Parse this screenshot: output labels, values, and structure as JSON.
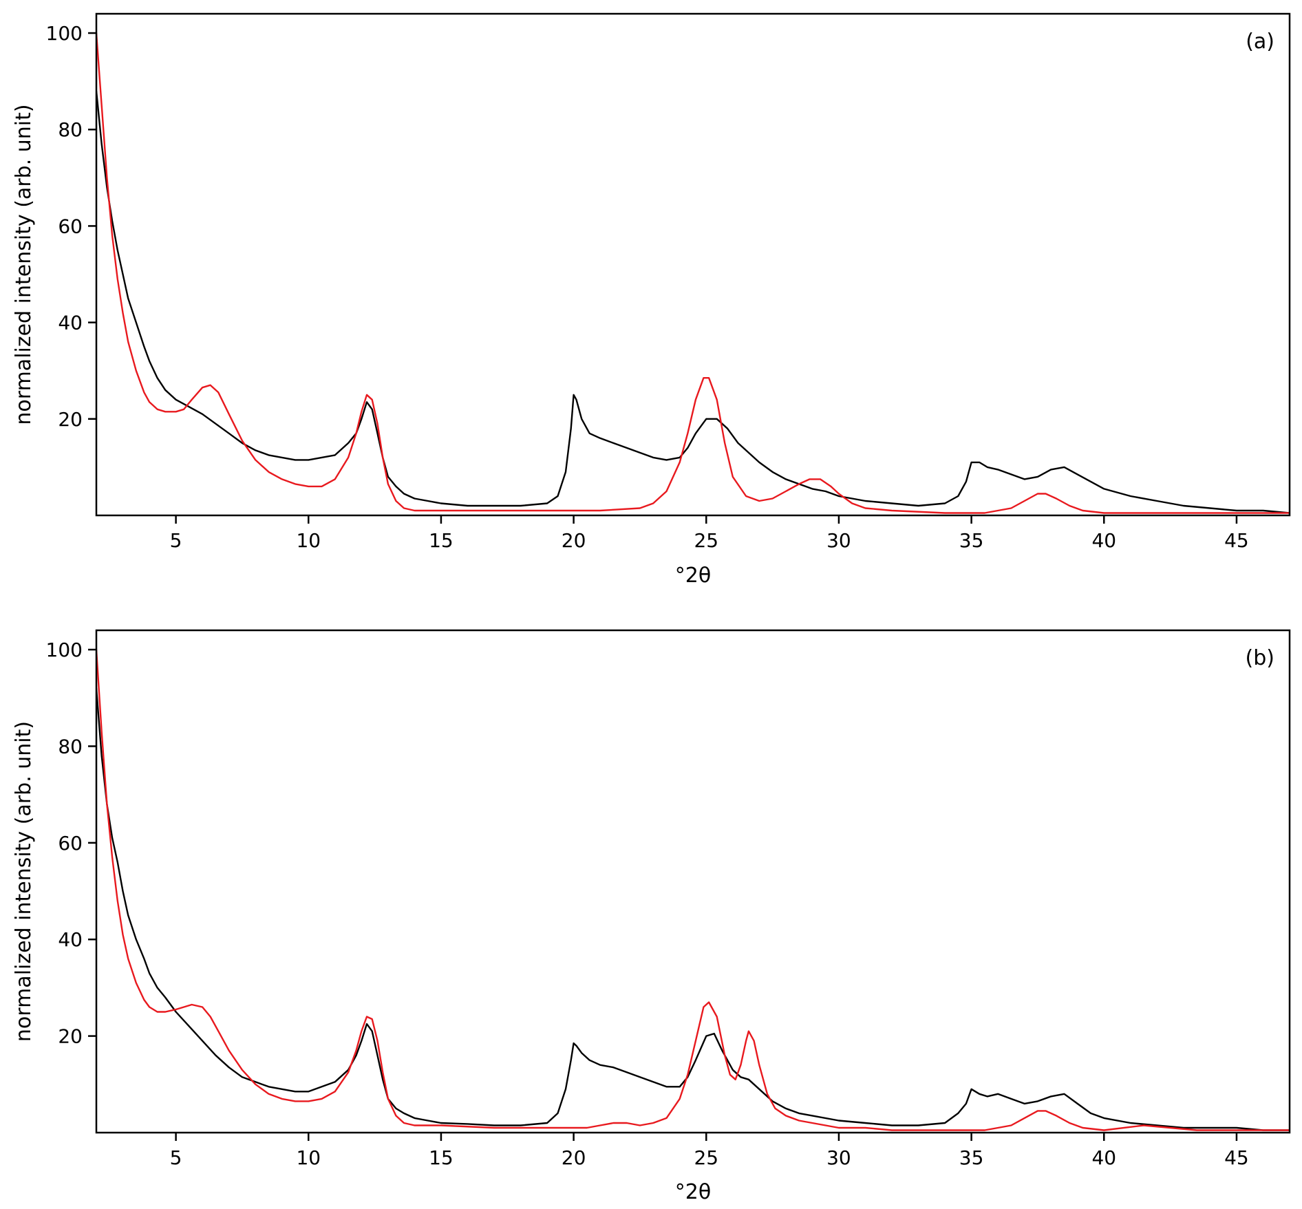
{
  "colors": {
    "measured": "#000000",
    "calculated": "#e8191e"
  },
  "chart_data": [
    {
      "type": "line",
      "panel_label": "(a)",
      "xlabel": "°2θ",
      "ylabel": "normalized intensity (arb. unit)",
      "xlim": [
        2,
        47
      ],
      "ylim": [
        0,
        104
      ],
      "xticks": [
        5,
        10,
        15,
        20,
        25,
        30,
        35,
        40,
        45
      ],
      "yticks": [
        20,
        40,
        60,
        80,
        100
      ],
      "grid": false,
      "series": [
        {
          "color": "#000000",
          "x": [
            2.0,
            2.2,
            2.4,
            2.6,
            2.8,
            3.0,
            3.2,
            3.5,
            3.8,
            4.0,
            4.3,
            4.6,
            5.0,
            5.5,
            6.0,
            6.5,
            7.0,
            7.5,
            8.0,
            8.5,
            9.0,
            9.5,
            10.0,
            10.5,
            11.0,
            11.5,
            11.8,
            12.0,
            12.2,
            12.4,
            12.6,
            12.8,
            13.0,
            13.3,
            13.6,
            14.0,
            14.5,
            15.0,
            16.0,
            17.0,
            18.0,
            19.0,
            19.4,
            19.7,
            19.9,
            20.0,
            20.1,
            20.3,
            20.6,
            21.0,
            21.5,
            22.0,
            22.5,
            23.0,
            23.5,
            24.0,
            24.3,
            24.6,
            25.0,
            25.4,
            25.8,
            26.2,
            26.6,
            27.0,
            27.5,
            28.0,
            28.5,
            29.0,
            29.5,
            30.0,
            31.0,
            32.0,
            33.0,
            34.0,
            34.5,
            34.8,
            35.0,
            35.3,
            35.6,
            36.0,
            36.5,
            37.0,
            37.5,
            38.0,
            38.5,
            39.0,
            39.5,
            40.0,
            41.0,
            42.0,
            43.0,
            44.0,
            45.0,
            46.0,
            47.0
          ],
          "y": [
            88.0,
            77.0,
            68.0,
            61.0,
            55.0,
            50.0,
            45.0,
            40.0,
            35.0,
            32.0,
            28.5,
            26.0,
            24.0,
            22.5,
            21.0,
            19.0,
            17.0,
            15.0,
            13.5,
            12.5,
            12.0,
            11.5,
            11.5,
            12.0,
            12.5,
            15.0,
            17.0,
            20.0,
            23.5,
            22.0,
            17.0,
            12.0,
            8.0,
            6.0,
            4.5,
            3.5,
            3.0,
            2.5,
            2.0,
            2.0,
            2.0,
            2.5,
            4.0,
            9.0,
            18.0,
            25.0,
            24.0,
            20.0,
            17.0,
            16.0,
            15.0,
            14.0,
            13.0,
            12.0,
            11.5,
            12.0,
            14.0,
            17.0,
            20.0,
            20.0,
            18.0,
            15.0,
            13.0,
            11.0,
            9.0,
            7.5,
            6.5,
            5.5,
            5.0,
            4.0,
            3.0,
            2.5,
            2.0,
            2.5,
            4.0,
            7.0,
            11.0,
            11.0,
            10.0,
            9.5,
            8.5,
            7.5,
            8.0,
            9.5,
            10.0,
            8.5,
            7.0,
            5.5,
            4.0,
            3.0,
            2.0,
            1.5,
            1.0,
            1.0,
            0.5
          ]
        },
        {
          "color": "#e8191e",
          "x": [
            2.0,
            2.2,
            2.4,
            2.6,
            2.8,
            3.0,
            3.2,
            3.5,
            3.8,
            4.0,
            4.3,
            4.6,
            5.0,
            5.3,
            5.6,
            6.0,
            6.3,
            6.6,
            7.0,
            7.5,
            8.0,
            8.5,
            9.0,
            9.5,
            10.0,
            10.5,
            11.0,
            11.5,
            11.8,
            12.0,
            12.2,
            12.4,
            12.6,
            12.8,
            13.0,
            13.3,
            13.6,
            14.0,
            15.0,
            17.0,
            19.0,
            21.0,
            22.5,
            23.0,
            23.5,
            24.0,
            24.3,
            24.6,
            24.9,
            25.1,
            25.4,
            25.7,
            26.0,
            26.5,
            27.0,
            27.5,
            28.0,
            28.5,
            28.9,
            29.3,
            29.7,
            30.0,
            30.5,
            31.0,
            32.0,
            34.0,
            35.5,
            36.5,
            37.0,
            37.5,
            37.8,
            38.2,
            38.7,
            39.2,
            40.0,
            42.0,
            45.0,
            47.0
          ],
          "y": [
            100.0,
            85.0,
            70.0,
            58.0,
            49.0,
            42.0,
            36.0,
            30.0,
            25.5,
            23.5,
            22.0,
            21.5,
            21.5,
            22.0,
            24.0,
            26.5,
            27.0,
            25.5,
            21.0,
            15.5,
            11.5,
            9.0,
            7.5,
            6.5,
            6.0,
            6.0,
            7.5,
            12.0,
            17.0,
            21.5,
            25.0,
            24.0,
            19.0,
            12.0,
            6.5,
            3.0,
            1.5,
            1.0,
            1.0,
            1.0,
            1.0,
            1.0,
            1.5,
            2.5,
            5.0,
            11.0,
            17.0,
            24.0,
            28.5,
            28.5,
            24.0,
            15.0,
            8.0,
            4.0,
            3.0,
            3.5,
            5.0,
            6.5,
            7.5,
            7.5,
            6.0,
            4.5,
            2.5,
            1.5,
            1.0,
            0.5,
            0.5,
            1.5,
            3.0,
            4.5,
            4.5,
            3.5,
            2.0,
            1.0,
            0.5,
            0.5,
            0.5,
            0.5
          ]
        }
      ]
    },
    {
      "type": "line",
      "panel_label": "(b)",
      "xlabel": "°2θ",
      "ylabel": "normalized intensity (arb. unit)",
      "xlim": [
        2,
        47
      ],
      "ylim": [
        0,
        104
      ],
      "xticks": [
        5,
        10,
        15,
        20,
        25,
        30,
        35,
        40,
        45
      ],
      "yticks": [
        20,
        40,
        60,
        80,
        100
      ],
      "grid": false,
      "series": [
        {
          "color": "#000000",
          "x": [
            2.0,
            2.2,
            2.4,
            2.6,
            2.8,
            3.0,
            3.2,
            3.5,
            3.8,
            4.0,
            4.3,
            4.6,
            5.0,
            5.5,
            6.0,
            6.5,
            7.0,
            7.5,
            8.0,
            8.5,
            9.0,
            9.5,
            10.0,
            10.5,
            11.0,
            11.5,
            11.8,
            12.0,
            12.2,
            12.4,
            12.6,
            12.8,
            13.0,
            13.3,
            13.6,
            14.0,
            14.5,
            15.0,
            16.0,
            17.0,
            18.0,
            19.0,
            19.4,
            19.7,
            19.9,
            20.0,
            20.1,
            20.3,
            20.6,
            21.0,
            21.5,
            22.0,
            22.5,
            23.0,
            23.5,
            24.0,
            24.3,
            24.6,
            25.0,
            25.3,
            25.6,
            26.0,
            26.3,
            26.6,
            27.0,
            27.5,
            28.0,
            28.5,
            29.0,
            30.0,
            31.0,
            32.0,
            33.0,
            34.0,
            34.5,
            34.8,
            35.0,
            35.3,
            35.6,
            36.0,
            36.5,
            37.0,
            37.5,
            38.0,
            38.5,
            39.0,
            39.5,
            40.0,
            41.0,
            42.0,
            43.0,
            44.0,
            45.0,
            46.0,
            47.0
          ],
          "y": [
            92.0,
            78.0,
            68.0,
            61.0,
            56.0,
            50.0,
            45.0,
            40.0,
            36.0,
            33.0,
            30.0,
            28.0,
            25.0,
            22.0,
            19.0,
            16.0,
            13.5,
            11.5,
            10.5,
            9.5,
            9.0,
            8.5,
            8.5,
            9.5,
            10.5,
            13.0,
            16.0,
            19.0,
            22.5,
            21.0,
            16.0,
            11.0,
            7.0,
            5.0,
            4.0,
            3.0,
            2.5,
            2.0,
            1.8,
            1.5,
            1.5,
            2.0,
            4.0,
            9.0,
            15.0,
            18.5,
            18.0,
            16.5,
            15.0,
            14.0,
            13.5,
            12.5,
            11.5,
            10.5,
            9.5,
            9.5,
            11.5,
            15.0,
            20.0,
            20.5,
            17.0,
            13.0,
            11.5,
            11.0,
            9.0,
            6.5,
            5.0,
            4.0,
            3.5,
            2.5,
            2.0,
            1.5,
            1.5,
            2.0,
            4.0,
            6.0,
            9.0,
            8.0,
            7.5,
            8.0,
            7.0,
            6.0,
            6.5,
            7.5,
            8.0,
            6.0,
            4.0,
            3.0,
            2.0,
            1.5,
            1.0,
            1.0,
            1.0,
            0.5,
            0.5
          ]
        },
        {
          "color": "#e8191e",
          "x": [
            2.0,
            2.2,
            2.4,
            2.6,
            2.8,
            3.0,
            3.2,
            3.5,
            3.8,
            4.0,
            4.3,
            4.6,
            5.0,
            5.3,
            5.6,
            6.0,
            6.3,
            6.6,
            7.0,
            7.5,
            8.0,
            8.5,
            9.0,
            9.5,
            10.0,
            10.5,
            11.0,
            11.5,
            11.8,
            12.0,
            12.2,
            12.4,
            12.6,
            12.8,
            13.0,
            13.3,
            13.6,
            14.0,
            15.0,
            17.0,
            19.0,
            20.5,
            21.0,
            21.5,
            22.0,
            22.5,
            23.0,
            23.5,
            24.0,
            24.3,
            24.6,
            24.9,
            25.1,
            25.4,
            25.7,
            25.9,
            26.1,
            26.3,
            26.5,
            26.6,
            26.8,
            27.0,
            27.3,
            27.6,
            28.0,
            28.5,
            29.0,
            30.0,
            31.0,
            32.0,
            34.0,
            35.5,
            36.5,
            37.0,
            37.5,
            37.8,
            38.2,
            38.7,
            39.2,
            40.0,
            41.5,
            42.5,
            43.5,
            45.0,
            47.0
          ],
          "y": [
            100.0,
            83.0,
            68.0,
            57.0,
            48.0,
            41.0,
            36.0,
            31.0,
            27.5,
            26.0,
            25.0,
            25.0,
            25.5,
            26.0,
            26.5,
            26.0,
            24.0,
            21.0,
            17.0,
            13.0,
            10.0,
            8.0,
            7.0,
            6.5,
            6.5,
            7.0,
            8.5,
            12.5,
            17.0,
            21.0,
            24.0,
            23.5,
            19.0,
            12.5,
            7.0,
            3.5,
            2.0,
            1.5,
            1.5,
            1.0,
            1.0,
            1.0,
            1.5,
            2.0,
            2.0,
            1.5,
            2.0,
            3.0,
            7.0,
            12.0,
            19.0,
            26.0,
            27.0,
            24.0,
            16.0,
            12.0,
            11.0,
            14.0,
            19.0,
            21.0,
            19.0,
            14.0,
            8.0,
            5.0,
            3.5,
            2.5,
            2.0,
            1.0,
            1.0,
            0.5,
            0.5,
            0.5,
            1.5,
            3.0,
            4.5,
            4.5,
            3.5,
            2.0,
            1.0,
            0.5,
            1.5,
            1.0,
            0.5,
            0.5,
            0.5
          ]
        }
      ]
    }
  ]
}
